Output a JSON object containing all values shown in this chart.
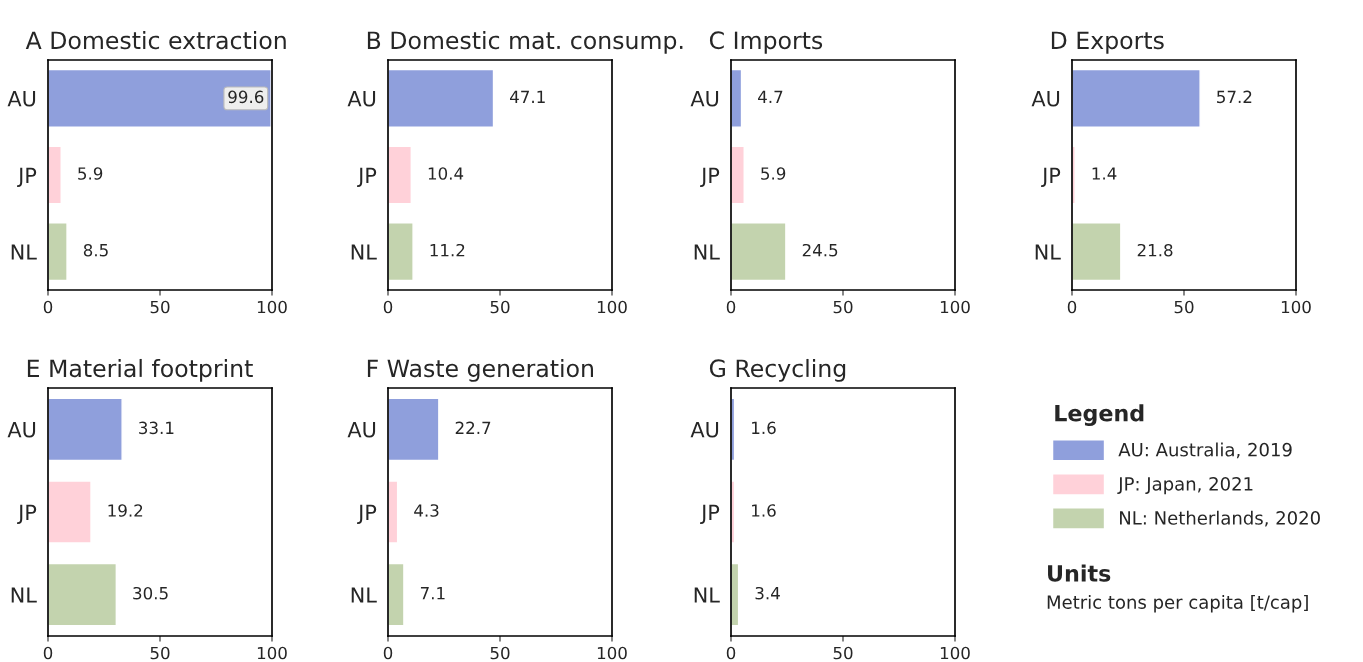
{
  "chart_data": [
    {
      "type": "bar",
      "orientation": "horizontal",
      "title": "A Domestic extraction",
      "categories": [
        "AU",
        "JP",
        "NL"
      ],
      "values": [
        99.6,
        5.9,
        8.5
      ],
      "colors": [
        "#8f9fdc",
        "#ffd1d9",
        "#c3d3ae"
      ],
      "xlim": [
        0,
        100
      ],
      "xticks": [
        0,
        50,
        100
      ],
      "data_labels": true
    },
    {
      "type": "bar",
      "orientation": "horizontal",
      "title": "B Domestic mat. consump.",
      "categories": [
        "AU",
        "JP",
        "NL"
      ],
      "values": [
        47.1,
        10.4,
        11.2
      ],
      "colors": [
        "#8f9fdc",
        "#ffd1d9",
        "#c3d3ae"
      ],
      "xlim": [
        0,
        100
      ],
      "xticks": [
        0,
        50,
        100
      ],
      "data_labels": true
    },
    {
      "type": "bar",
      "orientation": "horizontal",
      "title": "C Imports",
      "categories": [
        "AU",
        "JP",
        "NL"
      ],
      "values": [
        4.7,
        5.9,
        24.5
      ],
      "colors": [
        "#8f9fdc",
        "#ffd1d9",
        "#c3d3ae"
      ],
      "xlim": [
        0,
        100
      ],
      "xticks": [
        0,
        50,
        100
      ],
      "data_labels": true
    },
    {
      "type": "bar",
      "orientation": "horizontal",
      "title": "D Exports",
      "categories": [
        "AU",
        "JP",
        "NL"
      ],
      "values": [
        57.2,
        1.4,
        21.8
      ],
      "colors": [
        "#8f9fdc",
        "#ffd1d9",
        "#c3d3ae"
      ],
      "xlim": [
        0,
        100
      ],
      "xticks": [
        0,
        50,
        100
      ],
      "data_labels": true
    },
    {
      "type": "bar",
      "orientation": "horizontal",
      "title": "E Material footprint",
      "categories": [
        "AU",
        "JP",
        "NL"
      ],
      "values": [
        33.1,
        19.2,
        30.5
      ],
      "colors": [
        "#8f9fdc",
        "#ffd1d9",
        "#c3d3ae"
      ],
      "xlim": [
        0,
        100
      ],
      "xticks": [
        0,
        50,
        100
      ],
      "data_labels": true
    },
    {
      "type": "bar",
      "orientation": "horizontal",
      "title": "F Waste generation",
      "categories": [
        "AU",
        "JP",
        "NL"
      ],
      "values": [
        22.7,
        4.3,
        7.1
      ],
      "colors": [
        "#8f9fdc",
        "#ffd1d9",
        "#c3d3ae"
      ],
      "xlim": [
        0,
        100
      ],
      "xticks": [
        0,
        50,
        100
      ],
      "data_labels": true
    },
    {
      "type": "bar",
      "orientation": "horizontal",
      "title": "G Recycling",
      "categories": [
        "AU",
        "JP",
        "NL"
      ],
      "values": [
        1.6,
        1.6,
        3.4
      ],
      "colors": [
        "#8f9fdc",
        "#ffd1d9",
        "#c3d3ae"
      ],
      "xlim": [
        0,
        100
      ],
      "xticks": [
        0,
        50,
        100
      ],
      "data_labels": true
    },
    {
      "type": "other",
      "legend_title": "Legend",
      "categories": [
        "AU: Australia, 2019",
        "JP: Japan, 2021",
        "NL: Netherlands, 2020"
      ],
      "colors": [
        "#8f9fdc",
        "#ffd1d9",
        "#c3d3ae"
      ],
      "annotations": [
        "Units",
        "Metric tons per capita [t/cap]"
      ]
    }
  ]
}
